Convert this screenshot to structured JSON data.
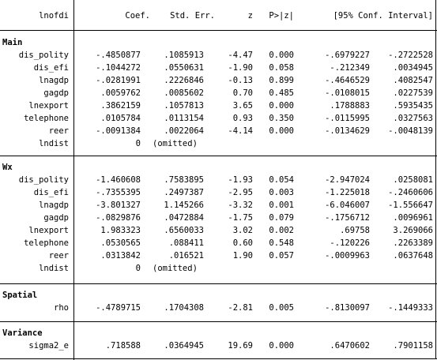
{
  "header": {
    "depvar": "lnofdi",
    "coef": "Coef.",
    "se": "Std. Err.",
    "z": "z",
    "p": "P>|z|",
    "ci": "[95% Conf. Interval]"
  },
  "sections": [
    {
      "title": "Main",
      "rows": [
        {
          "name": "dis_polity",
          "coef": "-.4850877",
          "se": ".1085913",
          "z": "-4.47",
          "p": "0.000",
          "lo": "-.6979227",
          "hi": "-.2722528"
        },
        {
          "name": "dis_efi",
          "coef": "-.1044272",
          "se": ".0550631",
          "z": "-1.90",
          "p": "0.058",
          "lo": "-.212349",
          "hi": ".0034945"
        },
        {
          "name": "lnagdp",
          "coef": "-.0281991",
          "se": ".2226846",
          "z": "-0.13",
          "p": "0.899",
          "lo": "-.4646529",
          "hi": ".4082547"
        },
        {
          "name": "gagdp",
          "coef": ".0059762",
          "se": ".0085602",
          "z": "0.70",
          "p": "0.485",
          "lo": "-.0108015",
          "hi": ".0227539"
        },
        {
          "name": "lnexport",
          "coef": ".3862159",
          "se": ".1057813",
          "z": "3.65",
          "p": "0.000",
          "lo": ".1788883",
          "hi": ".5935435"
        },
        {
          "name": "telephone",
          "coef": ".0105784",
          "se": ".0113154",
          "z": "0.93",
          "p": "0.350",
          "lo": "-.0115995",
          "hi": ".0327563"
        },
        {
          "name": "reer",
          "coef": "-.0091384",
          "se": ".0022064",
          "z": "-4.14",
          "p": "0.000",
          "lo": "-.0134629",
          "hi": "-.0048139"
        },
        {
          "name": "lndist",
          "coef": "0",
          "se": "(omitted)",
          "z": "",
          "p": "",
          "lo": "",
          "hi": ""
        }
      ]
    },
    {
      "title": "Wx",
      "rows": [
        {
          "name": "dis_polity",
          "coef": "-1.460608",
          "se": ".7583895",
          "z": "-1.93",
          "p": "0.054",
          "lo": "-2.947024",
          "hi": ".0258081"
        },
        {
          "name": "dis_efi",
          "coef": "-.7355395",
          "se": ".2497387",
          "z": "-2.95",
          "p": "0.003",
          "lo": "-1.225018",
          "hi": "-.2460606"
        },
        {
          "name": "lnagdp",
          "coef": "-3.801327",
          "se": "1.145266",
          "z": "-3.32",
          "p": "0.001",
          "lo": "-6.046007",
          "hi": "-1.556647"
        },
        {
          "name": "gagdp",
          "coef": "-.0829876",
          "se": ".0472884",
          "z": "-1.75",
          "p": "0.079",
          "lo": "-.1756712",
          "hi": ".0096961"
        },
        {
          "name": "lnexport",
          "coef": "1.983323",
          "se": ".6560033",
          "z": "3.02",
          "p": "0.002",
          "lo": ".69758",
          "hi": "3.269066"
        },
        {
          "name": "telephone",
          "coef": ".0530565",
          "se": ".088411",
          "z": "0.60",
          "p": "0.548",
          "lo": "-.120226",
          "hi": ".2263389"
        },
        {
          "name": "reer",
          "coef": ".0313842",
          "se": ".016521",
          "z": "1.90",
          "p": "0.057",
          "lo": "-.0009963",
          "hi": ".0637648"
        },
        {
          "name": "lndist",
          "coef": "0",
          "se": "(omitted)",
          "z": "",
          "p": "",
          "lo": "",
          "hi": ""
        }
      ]
    },
    {
      "title": "Spatial",
      "rows": [
        {
          "name": "rho",
          "coef": "-.4789715",
          "se": ".1704308",
          "z": "-2.81",
          "p": "0.005",
          "lo": "-.8130097",
          "hi": "-.1449333"
        }
      ]
    },
    {
      "title": "Variance",
      "rows": [
        {
          "name": "sigma2_e",
          "coef": ".718588",
          "se": ".0364945",
          "z": "19.69",
          "p": "0.000",
          "lo": ".6470602",
          "hi": ".7901158"
        }
      ]
    }
  ]
}
